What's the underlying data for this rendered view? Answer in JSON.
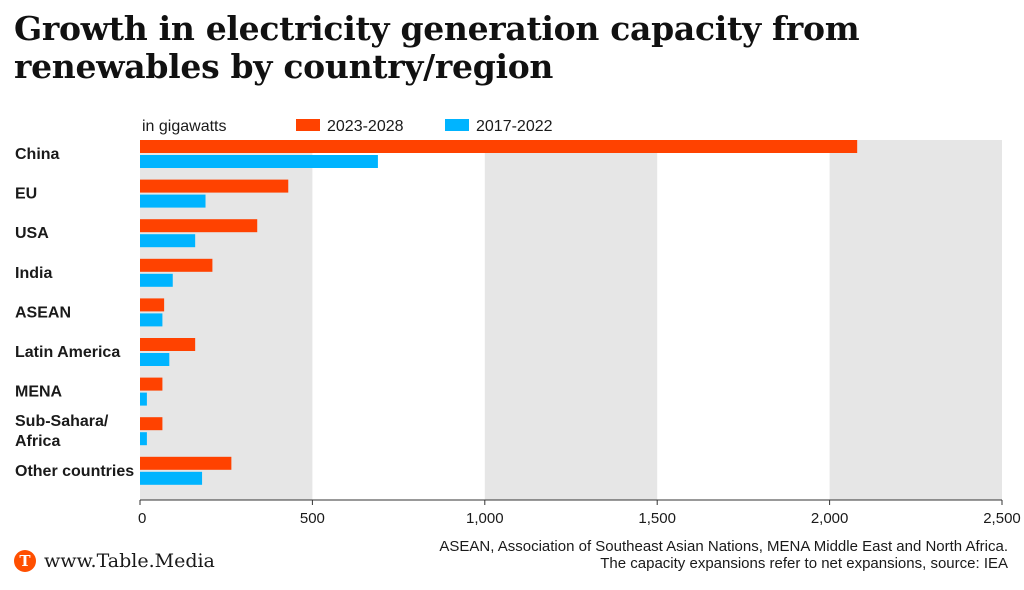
{
  "chart_data": {
    "type": "bar",
    "orientation": "horizontal",
    "title": "Growth in electricity generation capacity from renewables by country/region",
    "unit_label": "in gigawatts",
    "categories": [
      "China",
      "EU",
      "USA",
      "India",
      "ASEAN",
      "Latin America",
      "MENA",
      "Sub-Sahara/ Africa",
      "Other countries"
    ],
    "category_lines": [
      [
        "China"
      ],
      [
        "EU"
      ],
      [
        "USA"
      ],
      [
        "India"
      ],
      [
        "ASEAN"
      ],
      [
        "Latin America"
      ],
      [
        "MENA"
      ],
      [
        "Sub-Sahara/",
        "Africa"
      ],
      [
        "Other countries"
      ]
    ],
    "series": [
      {
        "name": "2023-2028",
        "color": "#ff4200",
        "values": [
          2080,
          430,
          340,
          210,
          70,
          160,
          65,
          65,
          265
        ]
      },
      {
        "name": "2017-2022",
        "color": "#00b4ff",
        "values": [
          690,
          190,
          160,
          95,
          65,
          85,
          20,
          20,
          180
        ]
      }
    ],
    "xlim": [
      0,
      2500
    ],
    "xticks": [
      0,
      500,
      1000,
      1500,
      2000,
      2500
    ],
    "xtick_labels": [
      "0",
      "500",
      "1,000",
      "1,500",
      "2,000",
      "2,500"
    ],
    "grid": "alternating vertical bands",
    "band_color": "#e6e6e6",
    "legend_position": "top"
  },
  "footer": {
    "logo_letter": "T",
    "logo_text": "www.Table.Media",
    "note_lines": [
      "ASEAN, Association of Southeast Asian Nations, MENA Middle East and North Africa.",
      "The capacity expansions refer to net expansions, source: IEA"
    ]
  }
}
